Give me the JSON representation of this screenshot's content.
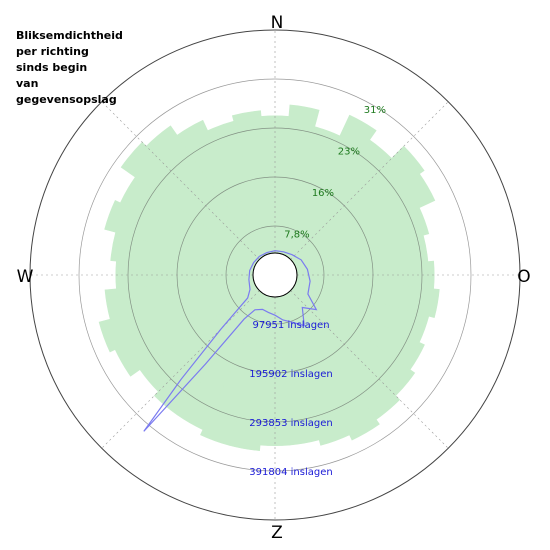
{
  "title": "Bliksemdichtheid\nper richting\nsinds begin\nvan\ngegevensopslag",
  "compass": {
    "north": "N",
    "east": "O",
    "south": "Z",
    "west": "W"
  },
  "colors": {
    "density_fill": "#c8eccb",
    "strike_line": "#7b7bf0",
    "pct_text": "#1e7a1e",
    "strike_text": "#1a1ad6",
    "grid": "#999999"
  },
  "chart_data": [
    {
      "type": "area",
      "projection": "polar",
      "title": "Bliksemdichtheid per richting sinds begin van gegevensopslag",
      "angle_unit": "degrees clockwise from north",
      "radial_ticks": [
        "7,8%",
        "16%",
        "23%",
        "31%"
      ],
      "radial_tick_values": [
        7.8,
        16,
        23,
        31
      ],
      "radial_range": [
        0,
        39
      ],
      "series": [
        {
          "angles": [
            0,
            10,
            20,
            30,
            40,
            50,
            60,
            70,
            80,
            90,
            100,
            110,
            120,
            130,
            140,
            150,
            160,
            170,
            180,
            190,
            200,
            210,
            220,
            230,
            240,
            250,
            260,
            270,
            280,
            290,
            300,
            310,
            320,
            330,
            340,
            350
          ],
          "values": [
            24,
            26,
            23,
            27,
            25,
            28,
            27,
            24,
            23,
            24,
            25,
            24,
            25,
            26,
            27,
            28,
            27,
            26,
            26,
            27,
            27,
            26,
            26,
            25,
            27,
            28,
            26,
            24,
            25,
            27,
            26,
            29,
            28,
            26,
            24,
            25
          ]
        }
      ]
    },
    {
      "type": "line",
      "projection": "polar",
      "angle_unit": "degrees clockwise from north",
      "radial_unit": "inslagen",
      "radial_ticks": [
        "97951 inslagen",
        "195902 inslagen",
        "293853 inslagen",
        "391804 inslagen"
      ],
      "radial_tick_values": [
        97951,
        195902,
        293853,
        391804
      ],
      "radial_range": [
        0,
        489755
      ],
      "series": [
        {
          "angles": [
            0,
            20,
            40,
            60,
            80,
            100,
            120,
            130,
            140,
            150,
            160,
            170,
            180,
            190,
            200,
            210,
            215,
            218,
            220,
            222,
            225,
            230,
            240,
            260,
            280,
            300,
            320,
            340
          ],
          "values": [
            5000,
            6000,
            10000,
            18000,
            24000,
            30000,
            35000,
            70000,
            45000,
            80000,
            62000,
            52000,
            40000,
            35000,
            32000,
            40000,
            70000,
            200000,
            400000,
            260000,
            120000,
            30000,
            15000,
            10000,
            8000,
            6000,
            5000,
            4000
          ]
        }
      ]
    }
  ]
}
